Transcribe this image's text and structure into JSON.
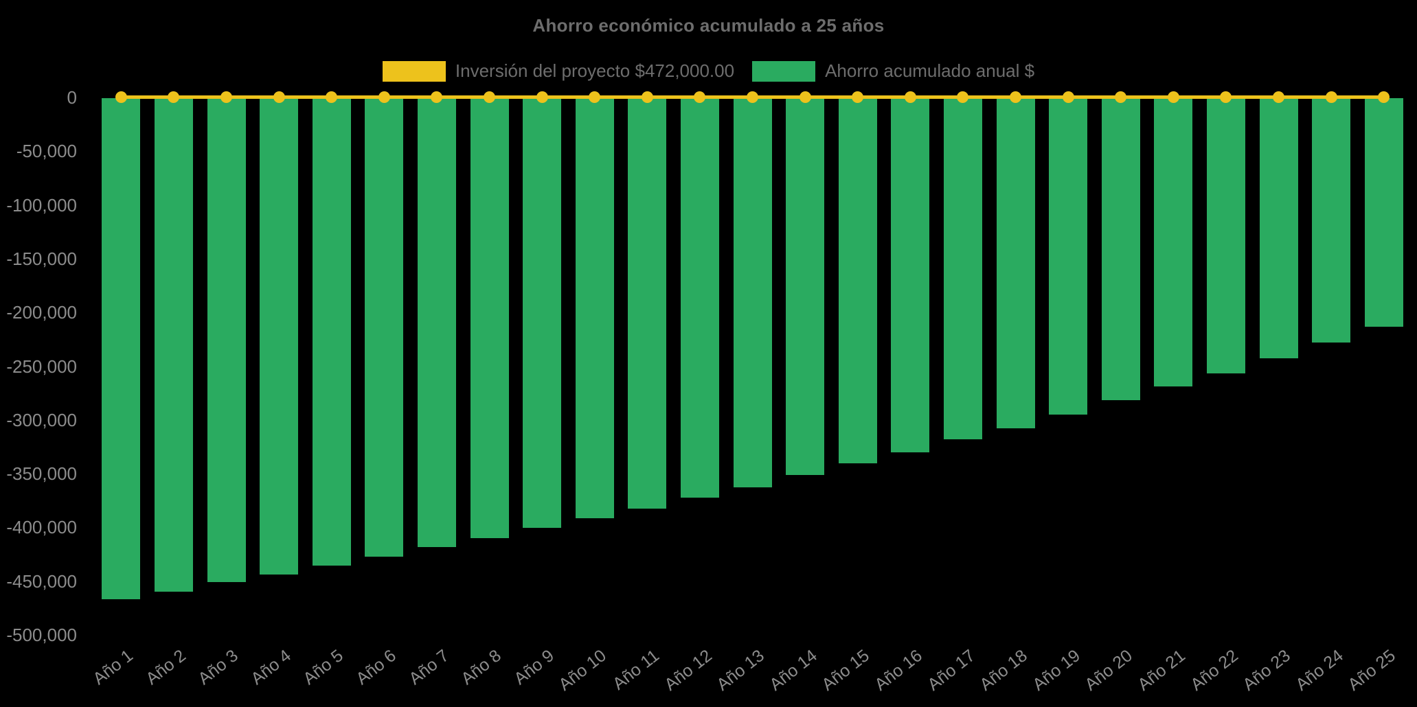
{
  "chart_title": "Ahorro económico acumulado a 25 años",
  "background_color": "#000000",
  "text_colors": {
    "title": "#6d6d6d",
    "legend": "#6d6d6d",
    "ticks": "#8c8c8c"
  },
  "chart_data": {
    "type": "bar",
    "title": "Ahorro económico acumulado a 25 años",
    "categories": [
      "Año 1",
      "Año 2",
      "Año 3",
      "Año 4",
      "Año 5",
      "Año 6",
      "Año 7",
      "Año 8",
      "Año 9",
      "Año 10",
      "Año 11",
      "Año 12",
      "Año 13",
      "Año 14",
      "Año 15",
      "Año 16",
      "Año 17",
      "Año 18",
      "Año 19",
      "Año 20",
      "Año 21",
      "Año 22",
      "Año 23",
      "Año 24",
      "Año 25"
    ],
    "series": [
      {
        "name": "Inversión del proyecto $472,000.00",
        "type": "line",
        "color": "#edc21c",
        "point_style": "circle",
        "values": [
          0,
          0,
          0,
          0,
          0,
          0,
          0,
          0,
          0,
          0,
          0,
          0,
          0,
          0,
          0,
          0,
          0,
          0,
          0,
          0,
          0,
          0,
          0,
          0,
          0
        ]
      },
      {
        "name": "Ahorro acumulado anual $",
        "type": "bar",
        "color": "#2aab60",
        "values": [
          -466500,
          -459500,
          -451000,
          -443500,
          -435500,
          -427000,
          -418000,
          -410000,
          -400500,
          -391500,
          -382500,
          -372500,
          -363000,
          -351500,
          -340500,
          -330000,
          -318000,
          -307500,
          -295000,
          -281500,
          -269000,
          -256500,
          -242500,
          -228000,
          -213500
        ]
      }
    ],
    "xlabel": "",
    "ylabel": "",
    "ylim": [
      -500000,
      0
    ],
    "y_tick_labels": [
      "0",
      "-50,000",
      "-100,000",
      "-150,000",
      "-200,000",
      "-250,000",
      "-300,000",
      "-350,000",
      "-400,000",
      "-450,000",
      "-500,000"
    ],
    "grid": false,
    "legend_position": "top"
  }
}
